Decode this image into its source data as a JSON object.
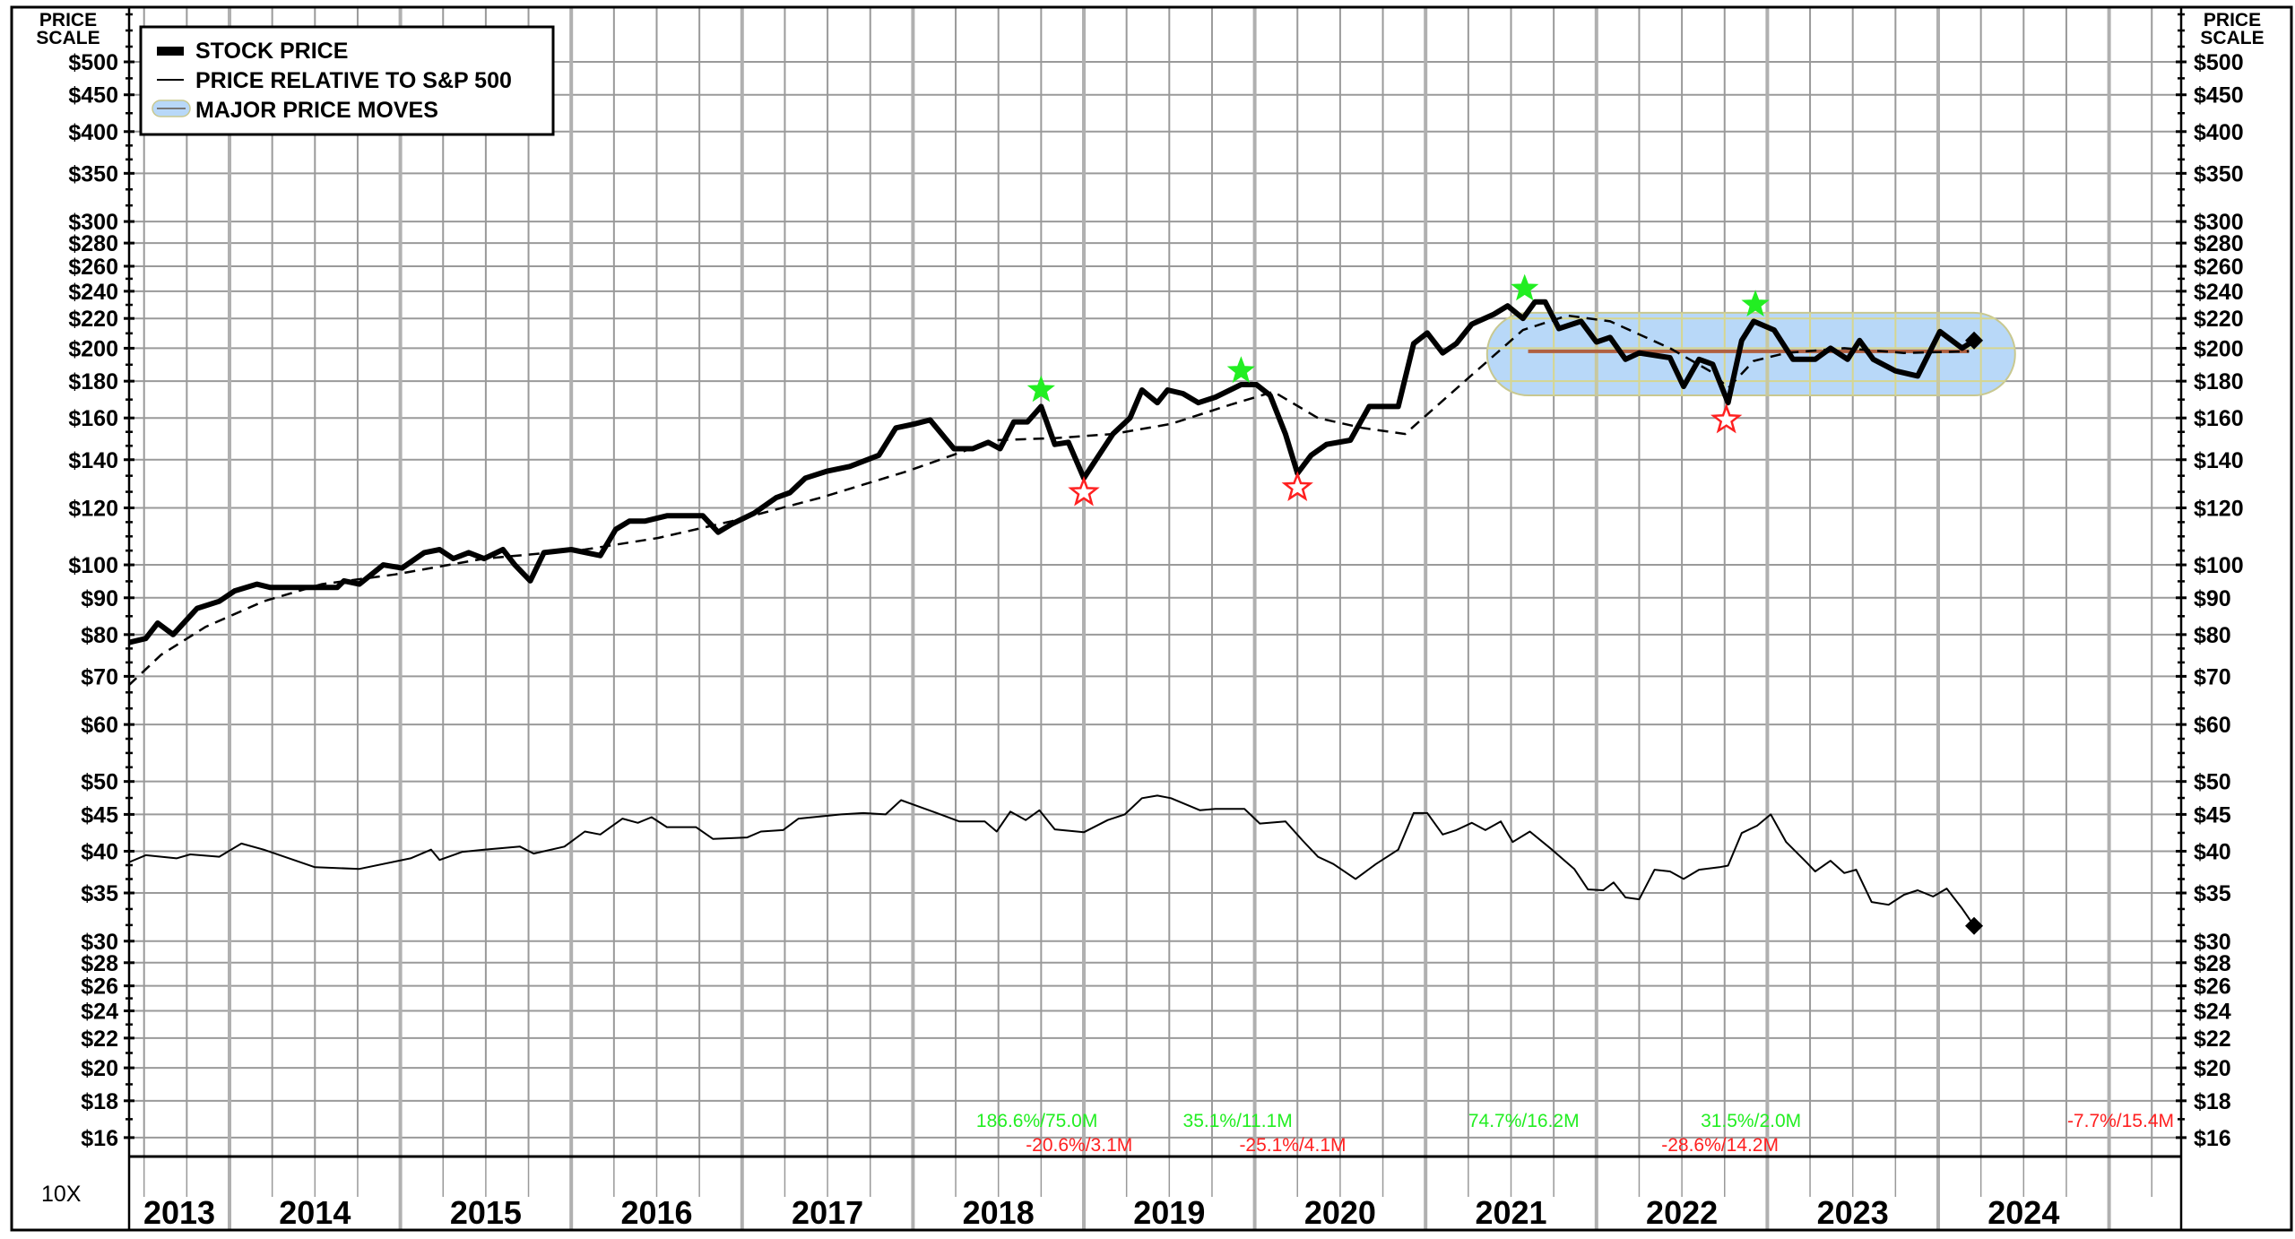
{
  "chart_data": {
    "type": "line",
    "y_scale": "log",
    "ylim": [
      15,
      540
    ],
    "xlim": [
      2013.41,
      2025.42
    ],
    "grid": true,
    "legend_placement": "top-left",
    "scale_title_line1": "PRICE",
    "scale_title_line2": "SCALE",
    "bottom_left_label": "10X",
    "y_ticks": [
      500,
      450,
      400,
      350,
      300,
      280,
      260,
      240,
      220,
      200,
      180,
      160,
      140,
      120,
      100,
      90,
      80,
      70,
      60,
      50,
      45,
      40,
      35,
      30,
      28,
      26,
      24,
      22,
      20,
      18,
      16
    ],
    "y_tick_labels": [
      "$500",
      "$450",
      "$400",
      "$350",
      "$300",
      "$280",
      "$260",
      "$240",
      "$220",
      "$200",
      "$180",
      "$160",
      "$140",
      "$120",
      "$100",
      "$90",
      "$80",
      "$70",
      "$60",
      "$50",
      "$45",
      "$40",
      "$35",
      "$30",
      "$28",
      "$26",
      "$24",
      "$22",
      "$20",
      "$18",
      "$16"
    ],
    "x_labels": [
      "2013",
      "2014",
      "2015",
      "2016",
      "2017",
      "2018",
      "2019",
      "2020",
      "2021",
      "2022",
      "2023",
      "2024"
    ],
    "legend": [
      {
        "label": "STOCK PRICE",
        "style": "thick-line"
      },
      {
        "label": "PRICE RELATIVE TO S&P 500",
        "style": "thin-line"
      },
      {
        "label": "MAJOR PRICE MOVES",
        "style": "band"
      }
    ],
    "colors": {
      "price": "#000000",
      "relative": "#000000",
      "band_fill": "#b8d8f8",
      "band_stroke": "#c8c890",
      "band_mid": "#b06040",
      "up": "#22ee22",
      "down": "#ff2020",
      "grid": "#9a9a9a"
    },
    "series": [
      {
        "name": "STOCK PRICE",
        "points": [
          [
            2013.41,
            78
          ],
          [
            2013.51,
            79
          ],
          [
            2013.58,
            83
          ],
          [
            2013.67,
            80
          ],
          [
            2013.81,
            87
          ],
          [
            2013.94,
            89
          ],
          [
            2014.03,
            92
          ],
          [
            2014.16,
            94
          ],
          [
            2014.24,
            93
          ],
          [
            2014.46,
            93
          ],
          [
            2014.63,
            93
          ],
          [
            2014.67,
            95
          ],
          [
            2014.76,
            94
          ],
          [
            2014.9,
            100
          ],
          [
            2015.01,
            99
          ],
          [
            2015.14,
            104
          ],
          [
            2015.23,
            105
          ],
          [
            2015.31,
            102
          ],
          [
            2015.4,
            104
          ],
          [
            2015.49,
            102
          ],
          [
            2015.6,
            105
          ],
          [
            2015.67,
            100
          ],
          [
            2015.76,
            95
          ],
          [
            2015.84,
            104
          ],
          [
            2016.0,
            105
          ],
          [
            2016.17,
            103
          ],
          [
            2016.26,
            112
          ],
          [
            2016.34,
            115
          ],
          [
            2016.43,
            115
          ],
          [
            2016.56,
            117
          ],
          [
            2016.77,
            117
          ],
          [
            2016.86,
            111
          ],
          [
            2016.94,
            114
          ],
          [
            2017.07,
            118
          ],
          [
            2017.2,
            124
          ],
          [
            2017.28,
            126
          ],
          [
            2017.37,
            132
          ],
          [
            2017.5,
            135
          ],
          [
            2017.63,
            137
          ],
          [
            2017.8,
            142
          ],
          [
            2017.9,
            155
          ],
          [
            2018.01,
            157
          ],
          [
            2018.1,
            159
          ],
          [
            2018.24,
            145
          ],
          [
            2018.35,
            145
          ],
          [
            2018.44,
            148
          ],
          [
            2018.51,
            145
          ],
          [
            2018.59,
            158
          ],
          [
            2018.67,
            158
          ],
          [
            2018.75,
            166
          ],
          [
            2018.83,
            147
          ],
          [
            2018.91,
            148
          ],
          [
            2019.0,
            132
          ],
          [
            2019.17,
            152
          ],
          [
            2019.27,
            160
          ],
          [
            2019.34,
            175
          ],
          [
            2019.43,
            168
          ],
          [
            2019.49,
            175
          ],
          [
            2019.58,
            173
          ],
          [
            2019.67,
            168
          ],
          [
            2019.77,
            171
          ],
          [
            2019.92,
            178
          ],
          [
            2020.01,
            178
          ],
          [
            2020.09,
            172
          ],
          [
            2020.18,
            152
          ],
          [
            2020.25,
            134
          ],
          [
            2020.33,
            142
          ],
          [
            2020.42,
            147
          ],
          [
            2020.56,
            149
          ],
          [
            2020.67,
            166
          ],
          [
            2020.84,
            166
          ],
          [
            2020.93,
            203
          ],
          [
            2021.01,
            210
          ],
          [
            2021.1,
            197
          ],
          [
            2021.18,
            203
          ],
          [
            2021.27,
            216
          ],
          [
            2021.4,
            223
          ],
          [
            2021.48,
            229
          ],
          [
            2021.57,
            220
          ],
          [
            2021.64,
            232
          ],
          [
            2021.7,
            232
          ],
          [
            2021.78,
            213
          ],
          [
            2021.91,
            218
          ],
          [
            2022.0,
            204
          ],
          [
            2022.08,
            207
          ],
          [
            2022.17,
            193
          ],
          [
            2022.25,
            197
          ],
          [
            2022.43,
            194
          ],
          [
            2022.51,
            177
          ],
          [
            2022.6,
            193
          ],
          [
            2022.68,
            190
          ],
          [
            2022.77,
            168
          ],
          [
            2022.85,
            205
          ],
          [
            2022.92,
            218
          ],
          [
            2023.04,
            212
          ],
          [
            2023.15,
            193
          ],
          [
            2023.28,
            193
          ],
          [
            2023.37,
            200
          ],
          [
            2023.47,
            193
          ],
          [
            2023.54,
            205
          ],
          [
            2023.62,
            193
          ],
          [
            2023.75,
            186
          ],
          [
            2023.88,
            183
          ],
          [
            2024.01,
            211
          ],
          [
            2024.14,
            200
          ],
          [
            2024.21,
            205
          ]
        ]
      },
      {
        "points": [
          [
            2013.41,
            68
          ],
          [
            2013.6,
            75
          ],
          [
            2013.86,
            82
          ],
          [
            2014.2,
            89
          ],
          [
            2014.54,
            94
          ],
          [
            2014.97,
            97
          ],
          [
            2015.49,
            102
          ],
          [
            2016.08,
            105
          ],
          [
            2016.51,
            109
          ],
          [
            2016.94,
            115
          ],
          [
            2017.46,
            124
          ],
          [
            2017.97,
            135
          ],
          [
            2018.48,
            149
          ],
          [
            2018.83,
            150
          ],
          [
            2019.17,
            152
          ],
          [
            2019.51,
            157
          ],
          [
            2019.86,
            167
          ],
          [
            2020.11,
            174
          ],
          [
            2020.37,
            160
          ],
          [
            2020.63,
            155
          ],
          [
            2020.88,
            152
          ],
          [
            2021.23,
            180
          ],
          [
            2021.57,
            212
          ],
          [
            2021.83,
            222
          ],
          [
            2022.08,
            218
          ],
          [
            2022.43,
            200
          ],
          [
            2022.68,
            185
          ],
          [
            2022.77,
            176
          ],
          [
            2022.92,
            192
          ],
          [
            2023.11,
            197
          ],
          [
            2023.45,
            200
          ],
          [
            2023.8,
            197
          ],
          [
            2024.18,
            198
          ]
        ]
      },
      {
        "name": "PRICE RELATIVE TO S&P 500",
        "points": [
          [
            2013.41,
            38.6
          ],
          [
            2013.51,
            39.5
          ],
          [
            2013.69,
            39.1
          ],
          [
            2013.77,
            39.6
          ],
          [
            2013.94,
            39.3
          ],
          [
            2014.07,
            41.0
          ],
          [
            2014.2,
            40.2
          ],
          [
            2014.5,
            38.0
          ],
          [
            2014.76,
            37.8
          ],
          [
            2015.06,
            39.1
          ],
          [
            2015.18,
            40.2
          ],
          [
            2015.23,
            38.9
          ],
          [
            2015.36,
            39.9
          ],
          [
            2015.49,
            40.2
          ],
          [
            2015.7,
            40.6
          ],
          [
            2015.78,
            39.7
          ],
          [
            2015.96,
            40.6
          ],
          [
            2016.08,
            42.6
          ],
          [
            2016.17,
            42.2
          ],
          [
            2016.3,
            44.4
          ],
          [
            2016.39,
            43.8
          ],
          [
            2016.47,
            44.6
          ],
          [
            2016.56,
            43.2
          ],
          [
            2016.73,
            43.2
          ],
          [
            2016.83,
            41.6
          ],
          [
            2017.03,
            41.8
          ],
          [
            2017.11,
            42.6
          ],
          [
            2017.24,
            42.8
          ],
          [
            2017.33,
            44.4
          ],
          [
            2017.58,
            45.0
          ],
          [
            2017.71,
            45.2
          ],
          [
            2017.84,
            45.0
          ],
          [
            2017.93,
            47.1
          ],
          [
            2018.14,
            45.2
          ],
          [
            2018.27,
            44.0
          ],
          [
            2018.42,
            44.0
          ],
          [
            2018.49,
            42.6
          ],
          [
            2018.57,
            45.4
          ],
          [
            2018.66,
            44.2
          ],
          [
            2018.74,
            45.6
          ],
          [
            2018.83,
            42.9
          ],
          [
            2019.0,
            42.5
          ],
          [
            2019.14,
            44.2
          ],
          [
            2019.24,
            45.0
          ],
          [
            2019.34,
            47.4
          ],
          [
            2019.43,
            47.8
          ],
          [
            2019.51,
            47.4
          ],
          [
            2019.68,
            45.6
          ],
          [
            2019.77,
            45.8
          ],
          [
            2019.94,
            45.8
          ],
          [
            2020.03,
            43.7
          ],
          [
            2020.18,
            44.0
          ],
          [
            2020.28,
            41.4
          ],
          [
            2020.37,
            39.3
          ],
          [
            2020.46,
            38.4
          ],
          [
            2020.59,
            36.6
          ],
          [
            2020.71,
            38.4
          ],
          [
            2020.84,
            40.2
          ],
          [
            2020.93,
            45.2
          ],
          [
            2021.01,
            45.2
          ],
          [
            2021.1,
            42.2
          ],
          [
            2021.18,
            42.8
          ],
          [
            2021.27,
            43.8
          ],
          [
            2021.35,
            42.8
          ],
          [
            2021.44,
            44.0
          ],
          [
            2021.51,
            41.2
          ],
          [
            2021.61,
            42.6
          ],
          [
            2021.74,
            40.2
          ],
          [
            2021.87,
            37.8
          ],
          [
            2021.95,
            35.4
          ],
          [
            2022.04,
            35.3
          ],
          [
            2022.1,
            36.2
          ],
          [
            2022.17,
            34.5
          ],
          [
            2022.25,
            34.3
          ],
          [
            2022.34,
            37.7
          ],
          [
            2022.43,
            37.5
          ],
          [
            2022.51,
            36.6
          ],
          [
            2022.6,
            37.7
          ],
          [
            2022.72,
            38.0
          ],
          [
            2022.77,
            38.2
          ],
          [
            2022.85,
            42.4
          ],
          [
            2022.94,
            43.4
          ],
          [
            2023.02,
            45.0
          ],
          [
            2023.11,
            41.2
          ],
          [
            2023.23,
            38.6
          ],
          [
            2023.28,
            37.5
          ],
          [
            2023.37,
            38.8
          ],
          [
            2023.45,
            37.3
          ],
          [
            2023.52,
            37.7
          ],
          [
            2023.61,
            34.0
          ],
          [
            2023.71,
            33.7
          ],
          [
            2023.8,
            34.8
          ],
          [
            2023.88,
            35.3
          ],
          [
            2023.97,
            34.6
          ],
          [
            2024.05,
            35.5
          ],
          [
            2024.14,
            33.3
          ],
          [
            2024.21,
            31.5
          ]
        ]
      }
    ],
    "price_move_band": {
      "x_start": 2021.36,
      "x_end": 2024.45,
      "price_high": 224,
      "price_low": 172,
      "mid_price": 198,
      "mid_x_start": 2021.6,
      "mid_x_end": 2024.18
    },
    "markers": [
      {
        "type": "up-star",
        "x": 2018.75,
        "price": 175
      },
      {
        "type": "up-star",
        "x": 2019.92,
        "price": 186
      },
      {
        "type": "up-star",
        "x": 2021.58,
        "price": 242
      },
      {
        "type": "up-star",
        "x": 2022.93,
        "price": 230
      },
      {
        "type": "down-star",
        "x": 2019.0,
        "price": 126
      },
      {
        "type": "down-star",
        "x": 2020.25,
        "price": 128
      },
      {
        "type": "down-star",
        "x": 2022.76,
        "price": 159
      }
    ],
    "annotations": [
      {
        "text": "186.6%/75.0M",
        "x": 2018.37,
        "row": "upper",
        "direction": "up"
      },
      {
        "text": "-20.6%/3.1M",
        "x": 2018.66,
        "row": "lower",
        "direction": "down"
      },
      {
        "text": "35.1%/11.1M",
        "x": 2019.58,
        "row": "upper",
        "direction": "up"
      },
      {
        "text": "-25.1%/4.1M",
        "x": 2019.91,
        "row": "lower",
        "direction": "down"
      },
      {
        "text": "74.7%/16.2M",
        "x": 2021.25,
        "row": "upper",
        "direction": "up"
      },
      {
        "text": "-28.6%/14.2M",
        "x": 2022.38,
        "row": "lower",
        "direction": "down"
      },
      {
        "text": "31.5%/2.0M",
        "x": 2022.61,
        "row": "upper",
        "direction": "up"
      },
      {
        "text": "-7.7%/15.4M",
        "x": 2025.08,
        "row": "upper",
        "direction": "down"
      }
    ]
  }
}
